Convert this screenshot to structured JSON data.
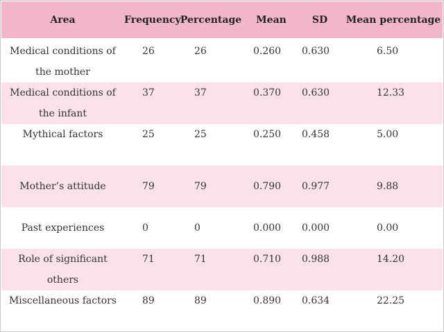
{
  "table": {
    "headers": [
      "Area",
      "Frequency",
      "Percentage",
      "Mean",
      "SD",
      "Mean percentage"
    ],
    "rows": [
      {
        "area": "Medical conditions of the mother",
        "frequency": "26",
        "percentage": "26",
        "mean": "0.260",
        "sd": "0.630",
        "mean_percentage": "6.50"
      },
      {
        "area": "Medical conditions of the infant",
        "frequency": "37",
        "percentage": "37",
        "mean": "0.370",
        "sd": "0.630",
        "mean_percentage": "12.33"
      },
      {
        "area": "Mythical factors",
        "frequency": "25",
        "percentage": "25",
        "mean": "0.250",
        "sd": "0.458",
        "mean_percentage": "5.00"
      },
      {
        "area": "Mother’s attitude",
        "frequency": "79",
        "percentage": "79",
        "mean": "0.790",
        "sd": "0.977",
        "mean_percentage": "9.88"
      },
      {
        "area": "Past experiences",
        "frequency": "0",
        "percentage": "0",
        "mean": "0.000",
        "sd": "0.000",
        "mean_percentage": "0.00"
      },
      {
        "area": "Role of significant others",
        "frequency": "71",
        "percentage": "71",
        "mean": "0.710",
        "sd": "0.988",
        "mean_percentage": "14.20"
      },
      {
        "area": "Miscellaneous factors",
        "frequency": "89",
        "percentage": "89",
        "mean": "0.890",
        "sd": "0.634",
        "mean_percentage": "22.25"
      }
    ]
  },
  "colors": {
    "header_bg": "#f2b6cb",
    "stripe_bg": "#fbe1ea",
    "row_bg": "#ffffff"
  }
}
